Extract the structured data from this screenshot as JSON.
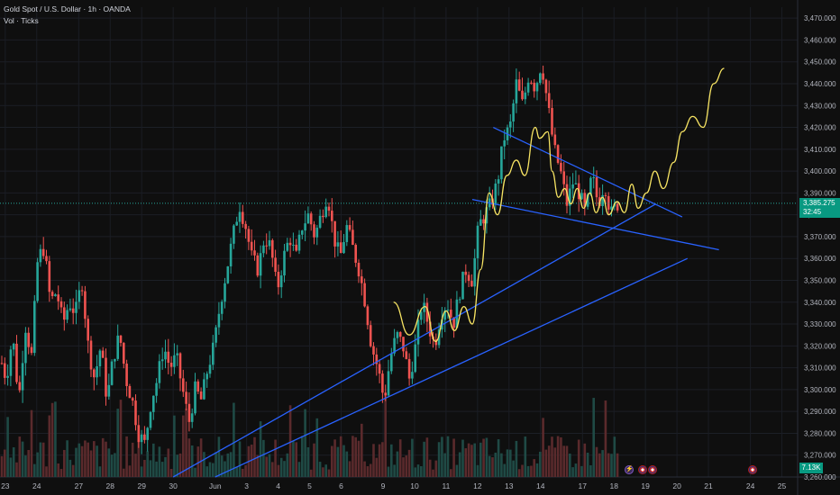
{
  "legend": {
    "title": "Gold Spot / U.S. Dollar · 1h · OANDA",
    "volume": "Vol · Ticks"
  },
  "price_tag": {
    "price": "3,385.275",
    "countdown": "32:45"
  },
  "volume_tag": "7.13K",
  "colors": {
    "background": "#0f0f0f",
    "up": "#26a69a",
    "down": "#ef5350",
    "axis_text": "#b2b5be",
    "trendline": "#2962ff",
    "projection": "#f7e463",
    "price_line": "#26a69a"
  },
  "events": [
    {
      "icon": "lightning-icon",
      "kind": "bolt"
    },
    {
      "icon": "us-flag-icon",
      "kind": "flag"
    },
    {
      "icon": "us-flag-icon",
      "kind": "flag"
    },
    {
      "icon": "us-flag-icon",
      "kind": "flag"
    }
  ],
  "chart_data": {
    "type": "candlestick",
    "symbol": "Gold Spot / U.S. Dollar",
    "interval": "1h",
    "source": "OANDA",
    "ylim": [
      3260,
      3475
    ],
    "y_ticks": [
      3260,
      3270,
      3280,
      3290,
      3300,
      3310,
      3320,
      3330,
      3340,
      3350,
      3360,
      3370,
      3380,
      3390,
      3400,
      3410,
      3420,
      3430,
      3440,
      3450,
      3460,
      3470
    ],
    "y_tick_labels": [
      "3,260.000",
      "3,270.000",
      "3,280.000",
      "3,290.000",
      "3,300.000",
      "3,310.000",
      "3,320.000",
      "3,330.000",
      "3,340.000",
      "3,350.000",
      "3,360.000",
      "3,370.000",
      "3,380.000",
      "3,390.000",
      "3,400.000",
      "3,410.000",
      "3,420.000",
      "3,430.000",
      "3,440.000",
      "3,450.000",
      "3,460.000",
      "3,470.000"
    ],
    "x_labels": [
      "23",
      "24",
      "27",
      "28",
      "29",
      "30",
      "Jun",
      "3",
      "4",
      "5",
      "6",
      "9",
      "10",
      "11",
      "12",
      "13",
      "14",
      "17",
      "18",
      "19",
      "20",
      "21",
      "24",
      "25"
    ],
    "x_label_pos": [
      0.5,
      3.5,
      7.5,
      10.5,
      13.5,
      16.5,
      20.5,
      23.5,
      26.5,
      29.5,
      32.5,
      36.5,
      39.5,
      42.5,
      45.5,
      48.5,
      51.5,
      55.5,
      58.5,
      61.5,
      64.5,
      67.5,
      71.5,
      74.5
    ],
    "x_range": [
      0,
      76
    ],
    "last_price": 3385.275,
    "price_path": [
      [
        0,
        3315
      ],
      [
        0.6,
        3305
      ],
      [
        1.2,
        3325
      ],
      [
        1.8,
        3295
      ],
      [
        2.4,
        3330
      ],
      [
        3.0,
        3315
      ],
      [
        3.6,
        3360
      ],
      [
        4.2,
        3365
      ],
      [
        4.8,
        3340
      ],
      [
        5.4,
        3345
      ],
      [
        6.0,
        3330
      ],
      [
        6.6,
        3340
      ],
      [
        7.2,
        3335
      ],
      [
        7.8,
        3350
      ],
      [
        8.4,
        3320
      ],
      [
        9.0,
        3305
      ],
      [
        9.6,
        3320
      ],
      [
        10.2,
        3295
      ],
      [
        10.8,
        3315
      ],
      [
        11.4,
        3325
      ],
      [
        12.0,
        3305
      ],
      [
        12.6,
        3295
      ],
      [
        13.2,
        3280
      ],
      [
        13.8,
        3275
      ],
      [
        14.4,
        3295
      ],
      [
        15.0,
        3305
      ],
      [
        15.6,
        3320
      ],
      [
        16.2,
        3310
      ],
      [
        16.8,
        3315
      ],
      [
        17.4,
        3300
      ],
      [
        18.0,
        3285
      ],
      [
        18.6,
        3300
      ],
      [
        19.2,
        3295
      ],
      [
        19.8,
        3310
      ],
      [
        20.4,
        3320
      ],
      [
        21.0,
        3340
      ],
      [
        21.6,
        3355
      ],
      [
        22.2,
        3370
      ],
      [
        22.8,
        3385
      ],
      [
        23.4,
        3375
      ],
      [
        24.0,
        3360
      ],
      [
        24.6,
        3355
      ],
      [
        25.2,
        3370
      ],
      [
        25.8,
        3365
      ],
      [
        26.4,
        3345
      ],
      [
        27.0,
        3360
      ],
      [
        27.6,
        3370
      ],
      [
        28.2,
        3360
      ],
      [
        28.8,
        3375
      ],
      [
        29.4,
        3380
      ],
      [
        30.0,
        3370
      ],
      [
        30.6,
        3380
      ],
      [
        31.2,
        3390
      ],
      [
        31.8,
        3370
      ],
      [
        32.4,
        3360
      ],
      [
        33.0,
        3375
      ],
      [
        33.6,
        3365
      ],
      [
        34.2,
        3355
      ],
      [
        34.8,
        3340
      ],
      [
        35.4,
        3320
      ],
      [
        36.0,
        3310
      ],
      [
        36.6,
        3295
      ],
      [
        37.2,
        3315
      ],
      [
        37.8,
        3325
      ],
      [
        38.4,
        3320
      ],
      [
        39.0,
        3305
      ],
      [
        39.6,
        3320
      ],
      [
        40.2,
        3340
      ],
      [
        40.8,
        3330
      ],
      [
        41.4,
        3320
      ],
      [
        42.0,
        3335
      ],
      [
        42.6,
        3340
      ],
      [
        43.2,
        3330
      ],
      [
        43.8,
        3345
      ],
      [
        44.4,
        3355
      ],
      [
        45.0,
        3350
      ],
      [
        45.6,
        3375
      ],
      [
        46.2,
        3380
      ],
      [
        46.8,
        3385
      ],
      [
        47.4,
        3395
      ],
      [
        48.0,
        3415
      ],
      [
        48.6,
        3420
      ],
      [
        49.2,
        3440
      ],
      [
        49.8,
        3430
      ],
      [
        50.4,
        3445
      ],
      [
        51.0,
        3438
      ],
      [
        51.6,
        3450
      ],
      [
        52.2,
        3430
      ],
      [
        52.8,
        3410
      ],
      [
        53.4,
        3400
      ],
      [
        54.0,
        3385
      ],
      [
        54.6,
        3395
      ],
      [
        55.2,
        3390
      ],
      [
        55.8,
        3380
      ],
      [
        56.4,
        3398
      ],
      [
        57.0,
        3385
      ],
      [
        57.6,
        3395
      ],
      [
        58.2,
        3380
      ],
      [
        58.8,
        3385
      ]
    ],
    "trendlines": [
      {
        "from": [
          16.5,
          3260
        ],
        "to": [
          62.5,
          3385
        ]
      },
      {
        "from": [
          20.5,
          3260
        ],
        "to": [
          65.5,
          3360
        ]
      },
      {
        "from": [
          47.0,
          3420
        ],
        "to": [
          65.0,
          3379
        ]
      },
      {
        "from": [
          45.0,
          3387
        ],
        "to": [
          68.5,
          3364
        ]
      }
    ],
    "projection_path": [
      [
        37.5,
        3340
      ],
      [
        39.0,
        3325
      ],
      [
        40.5,
        3338
      ],
      [
        41.5,
        3322
      ],
      [
        42.5,
        3336
      ],
      [
        43.3,
        3327
      ],
      [
        44.2,
        3338
      ],
      [
        45.0,
        3330
      ],
      [
        45.8,
        3355
      ],
      [
        46.6,
        3390
      ],
      [
        47.4,
        3380
      ],
      [
        48.3,
        3398
      ],
      [
        49.2,
        3405
      ],
      [
        50.0,
        3398
      ],
      [
        51.0,
        3420
      ],
      [
        51.4,
        3415
      ],
      [
        52.2,
        3418
      ],
      [
        52.6,
        3400
      ],
      [
        53.2,
        3388
      ],
      [
        53.8,
        3392
      ],
      [
        54.4,
        3385
      ],
      [
        55.0,
        3392
      ],
      [
        55.6,
        3383
      ],
      [
        56.2,
        3390
      ],
      [
        56.8,
        3381
      ],
      [
        57.4,
        3388
      ],
      [
        58.0,
        3380
      ],
      [
        58.8,
        3386
      ],
      [
        59.5,
        3381
      ],
      [
        60.2,
        3394
      ],
      [
        60.8,
        3383
      ],
      [
        61.6,
        3390
      ],
      [
        62.4,
        3400
      ],
      [
        63.2,
        3392
      ],
      [
        64.2,
        3404
      ],
      [
        65.0,
        3418
      ],
      [
        66.0,
        3425
      ],
      [
        67.0,
        3420
      ],
      [
        68.0,
        3440
      ],
      [
        69.0,
        3447
      ]
    ]
  }
}
